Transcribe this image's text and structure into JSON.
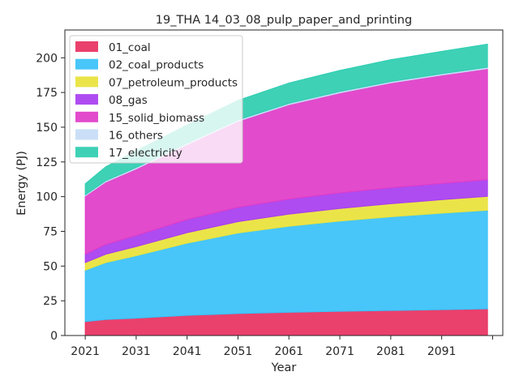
{
  "chart_data": {
    "type": "area",
    "title": "19_THA 14_03_08_pulp_paper_and_printing",
    "xlabel": "Year",
    "ylabel": "Energy (PJ)",
    "ylim": [
      0,
      220
    ],
    "xlim": [
      2017,
      2103
    ],
    "yticks": [
      0,
      25,
      50,
      75,
      100,
      125,
      150,
      175,
      200
    ],
    "xticks": [
      2021,
      2031,
      2041,
      2051,
      2061,
      2071,
      2081,
      2091
    ],
    "legend_position": "top-left",
    "grid": false,
    "x": [
      2021,
      2025,
      2031,
      2041,
      2051,
      2061,
      2071,
      2081,
      2091,
      2100
    ],
    "series": [
      {
        "name": "01_coal",
        "color": "#e8305f",
        "values": [
          10,
          11.5,
          12.5,
          14.5,
          15.8,
          16.7,
          17.4,
          18.0,
          18.6,
          19.2
        ]
      },
      {
        "name": "02_coal_products",
        "color": "#38c1f9",
        "values": [
          37,
          41,
          45,
          52,
          58,
          62,
          65,
          67.5,
          69.5,
          71
        ]
      },
      {
        "name": "07_petroleum_products",
        "color": "#e9e23a",
        "values": [
          5.5,
          6,
          6.5,
          7.5,
          8.2,
          8.7,
          9.1,
          9.4,
          9.7,
          10
        ]
      },
      {
        "name": "08_gas",
        "color": "#a73df0",
        "values": [
          6,
          7,
          8,
          9.5,
          10.3,
          10.8,
          11.2,
          11.5,
          11.7,
          12
        ]
      },
      {
        "name": "15_solid_biomass",
        "color": "#e03cc8",
        "values": [
          42,
          45,
          48,
          54,
          62,
          68,
          72,
          75.5,
          78,
          80
        ]
      },
      {
        "name": "16_others",
        "color": "#c6dcf6",
        "values": [
          0.8,
          0.9,
          1.0,
          1.0,
          1.0,
          1.0,
          1.0,
          1.0,
          1.0,
          1.0
        ]
      },
      {
        "name": "17_electricity",
        "color": "#2ecdb0",
        "values": [
          8,
          10,
          12,
          13,
          14,
          14.6,
          15.2,
          15.7,
          16.1,
          16.6
        ]
      }
    ]
  }
}
